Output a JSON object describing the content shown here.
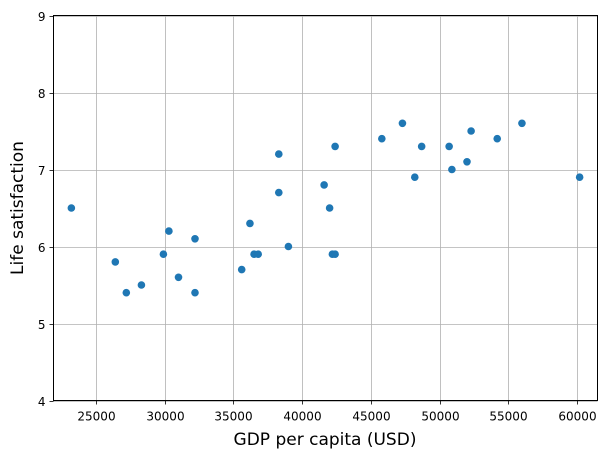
{
  "chart_data": {
    "type": "scatter",
    "title": "",
    "xlabel": "GDP per capita (USD)",
    "ylabel": "Life satisfaction",
    "xlim": [
      21900,
      61500
    ],
    "ylim": [
      4,
      9
    ],
    "grid": true,
    "legend": null,
    "marker_color": "#1f77b4",
    "xticks": [
      25000,
      30000,
      35000,
      40000,
      45000,
      50000,
      55000,
      60000
    ],
    "yticks": [
      4,
      5,
      6,
      7,
      8,
      9
    ],
    "points": [
      {
        "x": 23200,
        "y": 6.5
      },
      {
        "x": 26400,
        "y": 5.8
      },
      {
        "x": 27200,
        "y": 5.4
      },
      {
        "x": 28300,
        "y": 5.5
      },
      {
        "x": 29900,
        "y": 5.9
      },
      {
        "x": 30300,
        "y": 6.2
      },
      {
        "x": 31000,
        "y": 5.6
      },
      {
        "x": 32200,
        "y": 6.1
      },
      {
        "x": 32200,
        "y": 5.4
      },
      {
        "x": 35600,
        "y": 5.7
      },
      {
        "x": 36200,
        "y": 6.3
      },
      {
        "x": 36500,
        "y": 5.9
      },
      {
        "x": 36800,
        "y": 5.9
      },
      {
        "x": 38300,
        "y": 7.2
      },
      {
        "x": 38300,
        "y": 6.7
      },
      {
        "x": 39000,
        "y": 6.0
      },
      {
        "x": 41600,
        "y": 6.8
      },
      {
        "x": 42000,
        "y": 6.5
      },
      {
        "x": 42400,
        "y": 7.3
      },
      {
        "x": 42200,
        "y": 5.9
      },
      {
        "x": 42400,
        "y": 5.9
      },
      {
        "x": 45800,
        "y": 7.4
      },
      {
        "x": 47300,
        "y": 7.6
      },
      {
        "x": 48200,
        "y": 6.9
      },
      {
        "x": 48700,
        "y": 7.3
      },
      {
        "x": 50700,
        "y": 7.3
      },
      {
        "x": 50900,
        "y": 7.0
      },
      {
        "x": 52000,
        "y": 7.1
      },
      {
        "x": 52300,
        "y": 7.5
      },
      {
        "x": 54200,
        "y": 7.4
      },
      {
        "x": 56000,
        "y": 7.6
      },
      {
        "x": 60200,
        "y": 6.9
      }
    ]
  }
}
